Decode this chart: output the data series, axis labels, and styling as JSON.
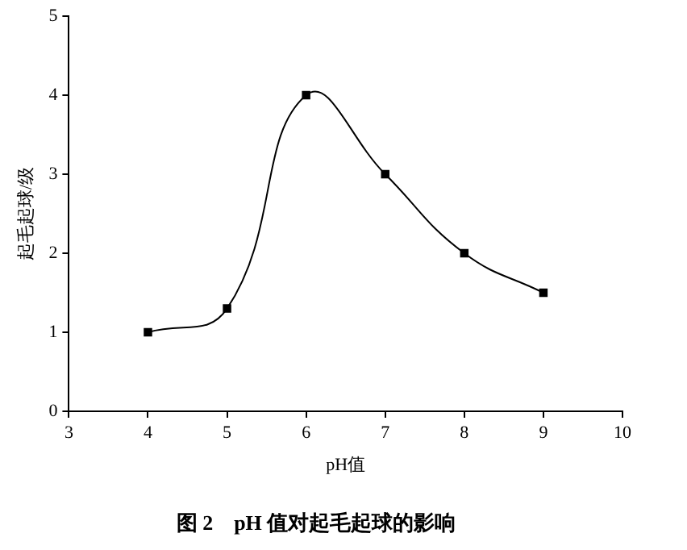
{
  "chart_data": {
    "type": "line",
    "title": "图 2　pH 值对起毛起球的影响",
    "xlabel": "pH值",
    "ylabel": "起毛起球/级",
    "x": [
      4,
      5,
      6,
      7,
      8,
      9
    ],
    "series": [
      {
        "color": "#000000",
        "values": [
          1,
          1.3,
          4,
          3,
          2,
          1.5
        ]
      }
    ],
    "xlim": [
      3,
      10
    ],
    "xticks": [
      3,
      4,
      5,
      6,
      7,
      8,
      9,
      10
    ],
    "ylim": [
      0,
      5
    ],
    "yticks": [
      0,
      1,
      2,
      3,
      4,
      5
    ],
    "grid": false,
    "legend": false,
    "marker": "square",
    "line_style": "solid"
  }
}
